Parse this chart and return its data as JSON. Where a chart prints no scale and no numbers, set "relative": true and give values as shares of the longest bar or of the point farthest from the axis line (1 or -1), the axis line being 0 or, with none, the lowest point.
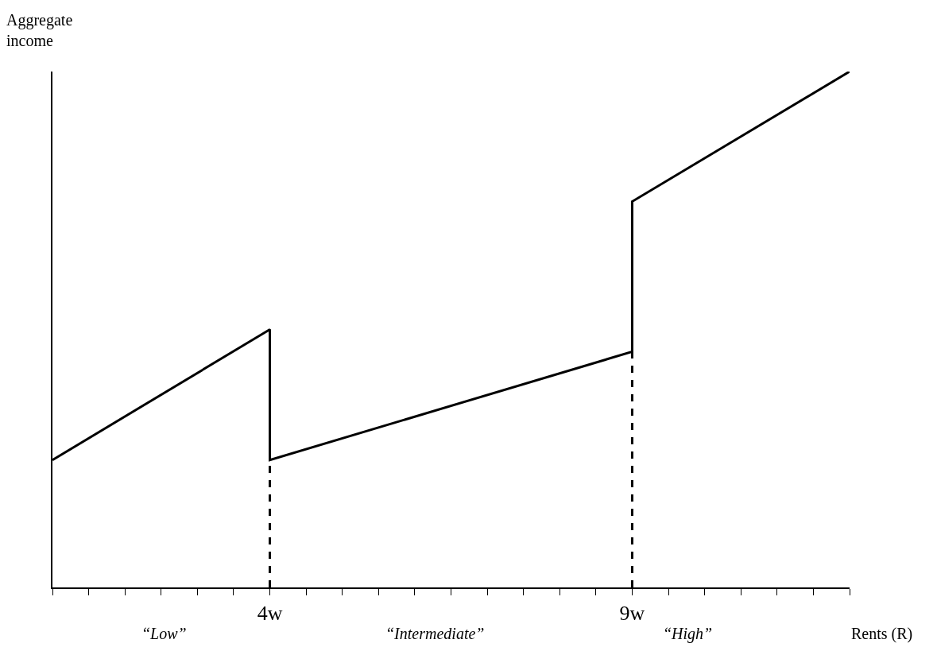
{
  "chart_data": {
    "type": "line",
    "relative": true,
    "ylabel": "Aggregate income",
    "xlabel": "Rents (R)",
    "xlim": [
      1,
      12
    ],
    "xticks": [
      {
        "value": 1,
        "label": null
      },
      {
        "value": 1.5,
        "label": null
      },
      {
        "value": 2,
        "label": null
      },
      {
        "value": 2.5,
        "label": null
      },
      {
        "value": 3,
        "label": null
      },
      {
        "value": 3.5,
        "label": null
      },
      {
        "value": 4,
        "label": "4w"
      },
      {
        "value": 4.5,
        "label": null
      },
      {
        "value": 5,
        "label": null
      },
      {
        "value": 5.5,
        "label": null
      },
      {
        "value": 6,
        "label": null
      },
      {
        "value": 6.5,
        "label": null
      },
      {
        "value": 7,
        "label": null
      },
      {
        "value": 7.5,
        "label": null
      },
      {
        "value": 8,
        "label": null
      },
      {
        "value": 8.5,
        "label": null
      },
      {
        "value": 9,
        "label": "9w"
      },
      {
        "value": 9.5,
        "label": null
      },
      {
        "value": 10,
        "label": null
      },
      {
        "value": 10.5,
        "label": null
      },
      {
        "value": 11,
        "label": null
      },
      {
        "value": 11.5,
        "label": null
      },
      {
        "value": 12,
        "label": null
      }
    ],
    "series": [
      {
        "color": "#000000",
        "line_style": "solid",
        "x": [
          1,
          4,
          4,
          9,
          9,
          12
        ],
        "values": [
          0.247,
          0.5,
          0.247,
          0.457,
          0.748,
          1.0
        ]
      },
      {
        "color": "#000000",
        "line_style": "dashed",
        "x": [
          4,
          4
        ],
        "values": [
          0,
          0.247
        ]
      },
      {
        "color": "#000000",
        "line_style": "dashed",
        "x": [
          9,
          9
        ],
        "values": [
          0,
          0.457
        ]
      }
    ],
    "annotations": [
      "“Low”",
      "“Intermediate”",
      "“High”"
    ],
    "marker": "none"
  }
}
